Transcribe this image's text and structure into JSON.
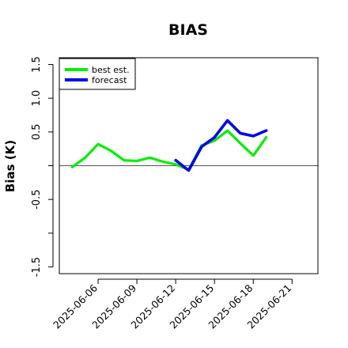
{
  "chart_data": {
    "type": "line",
    "title": "BIAS",
    "ylabel": "Bias (K)",
    "xlabel": "",
    "xlim": [
      "2025-06-03",
      "2025-06-23"
    ],
    "ylim": [
      -1.6,
      1.6
    ],
    "yticks": [
      "-1.5",
      "-1",
      "-0.5",
      "0",
      "0.5",
      "1.0",
      "1.5"
    ],
    "ytick_labels_shown": [
      "-1.5",
      "",
      "-0.5",
      "",
      "0.5",
      "1.0",
      "1.5"
    ],
    "xticks": [
      "2025-06-06",
      "2025-06-09",
      "2025-06-12",
      "2025-06-15",
      "2025-06-18",
      "2025-06-21"
    ],
    "highlight_tick": "2025-06-12",
    "highlight_color": "#2e8b2e",
    "reference_line": 0,
    "legend_position": "top-left",
    "series": [
      {
        "name": "best est.",
        "color": "#00ee00",
        "x": [
          "2025-06-04",
          "2025-06-05",
          "2025-06-06",
          "2025-06-07",
          "2025-06-08",
          "2025-06-09",
          "2025-06-10",
          "2025-06-11",
          "2025-06-12",
          "2025-06-13",
          "2025-06-14",
          "2025-06-15",
          "2025-06-16",
          "2025-06-17",
          "2025-06-18",
          "2025-06-19"
        ],
        "y": [
          -0.02,
          0.12,
          0.32,
          0.22,
          0.08,
          0.07,
          0.12,
          0.06,
          0.02,
          -0.06,
          0.3,
          0.37,
          0.52,
          0.33,
          0.15,
          0.42
        ]
      },
      {
        "name": "forecast",
        "color": "#0000ee",
        "x": [
          "2025-06-12",
          "2025-06-13",
          "2025-06-14",
          "2025-06-15",
          "2025-06-16",
          "2025-06-17",
          "2025-06-18",
          "2025-06-19"
        ],
        "y": [
          0.08,
          -0.07,
          0.28,
          0.42,
          0.67,
          0.48,
          0.44,
          0.52
        ]
      }
    ]
  }
}
